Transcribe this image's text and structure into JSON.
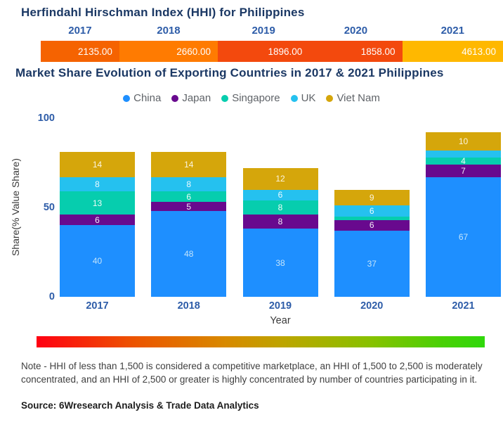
{
  "header": {
    "title": "Herfindahl Hirschman Index (HHI) for Philippines",
    "years": [
      "2017",
      "2018",
      "2019",
      "2020",
      "2021"
    ],
    "hhi_values": [
      "2135.00",
      "2660.00",
      "1896.00",
      "1858.00",
      "4613.00"
    ],
    "segment_colors": [
      "#f56301",
      "#ff7b01",
      "#f3490d",
      "#f3490d",
      "#ffb800"
    ],
    "segment_widths_pct": [
      17.0,
      21.3,
      19.8,
      20.1,
      21.8
    ]
  },
  "chart": {
    "title": "Market Share Evolution of Exporting Countries in 2017 & 2021 Philippines",
    "ylabel": "Share(% Value Share)",
    "xlabel": "Year",
    "yticks": [
      {
        "label": "100",
        "pos_pct": 0
      },
      {
        "label": "50",
        "pos_pct": 50
      },
      {
        "label": "0",
        "pos_pct": 100
      }
    ]
  },
  "chart_data": [
    {
      "type": "bar",
      "title": "Herfindahl Hirschman Index (HHI) for Philippines",
      "categories": [
        "2017",
        "2018",
        "2019",
        "2020",
        "2021"
      ],
      "values": [
        2135,
        2660,
        1896,
        1858,
        4613
      ],
      "value_labels": [
        "2135.00",
        "2660.00",
        "1896.00",
        "1858.00",
        "4613.00"
      ]
    },
    {
      "type": "bar",
      "subtype": "stacked",
      "title": "Market Share Evolution of Exporting Countries in 2017 & 2021 Philippines",
      "categories": [
        "2017",
        "2018",
        "2019",
        "2020",
        "2021"
      ],
      "series": [
        {
          "name": "China",
          "color": "#1e8fff",
          "label_color": "#c3e4fb",
          "values": [
            40,
            48,
            38,
            37,
            67
          ],
          "labels": [
            "40",
            "48",
            "38",
            "37",
            "67"
          ]
        },
        {
          "name": "Japan",
          "color": "#68098e",
          "label_color": "#f4ecf7",
          "values": [
            6,
            5,
            8,
            6,
            7
          ],
          "labels": [
            "6",
            "5",
            "8",
            "6",
            "7"
          ]
        },
        {
          "name": "Singapore",
          "color": "#06cdae",
          "label_color": "#effcf8",
          "values": [
            13,
            6,
            8,
            2,
            4
          ],
          "labels": [
            "13",
            "6",
            "8",
            "",
            "4"
          ]
        },
        {
          "name": "UK",
          "color": "#25c1ef",
          "label_color": "#ecfaff",
          "values": [
            8,
            8,
            6,
            6,
            4
          ],
          "labels": [
            "8",
            "8",
            "6",
            "6",
            ""
          ]
        },
        {
          "name": "Viet Nam",
          "color": "#d5a60b",
          "label_color": "#fcf5df",
          "values": [
            14,
            14,
            12,
            9,
            10
          ],
          "labels": [
            "14",
            "14",
            "12",
            "9",
            "10"
          ]
        }
      ],
      "xlabel": "Year",
      "ylabel": "Share(% Value Share)",
      "ylim": [
        0,
        100
      ],
      "grid": false,
      "legend_position": "top"
    }
  ],
  "gradient_scale": {
    "left_color": "#ff0012",
    "right_color": "#2fd80b",
    "description": "red-to-green concentration scale"
  },
  "footer": {
    "note": "Note - HHI of less than 1,500 is considered a competitive marketplace, an HHI of 1,500 to 2,500 is moderately concentrated, and an HHI of 2,500 or greater is highly concentrated by number of countries participating in it.",
    "source": "Source: 6Wresearch Analysis & Trade Data Analytics"
  }
}
